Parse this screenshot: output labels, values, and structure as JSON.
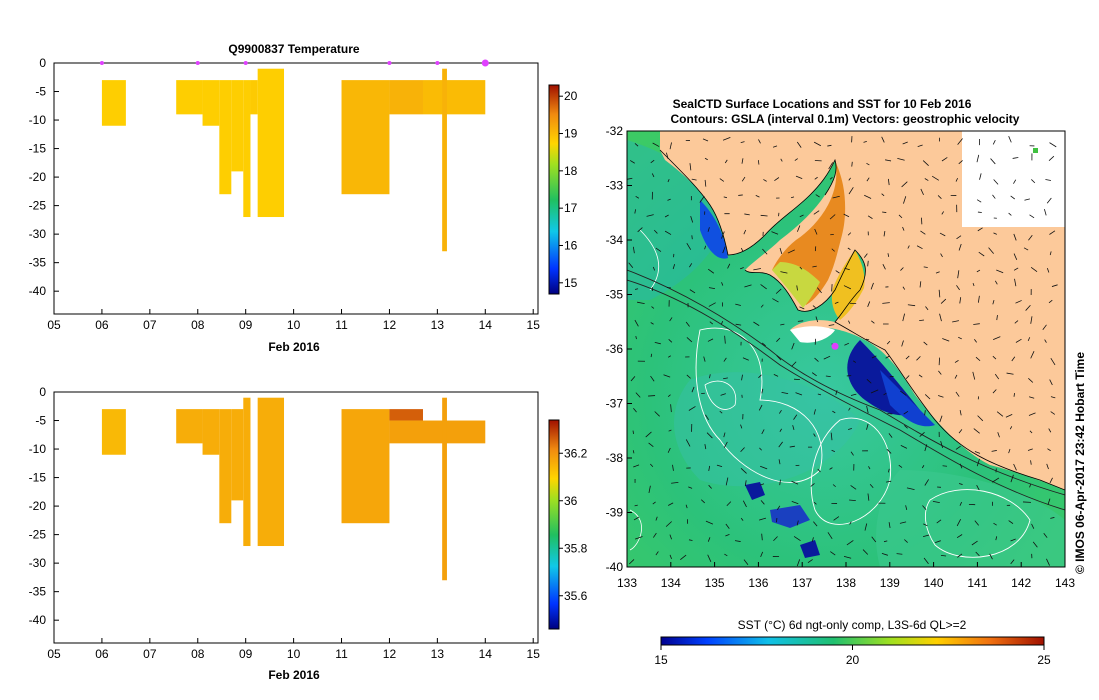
{
  "colors": {
    "temp_bar": "#f7b11c",
    "temp_bar_dark": "#e78a1e",
    "sal_bar": "#f9b318",
    "sal_bar_dark": "#e8751a",
    "land": "#fcc99a",
    "deep_blue": "#0a1a8c",
    "sea_green": "#2ec87a",
    "marker": "#e040ff"
  },
  "chart_data": [
    {
      "type": "heatmap",
      "title": "Q9900837  Temperature",
      "xlabel": "Feb 2016",
      "ylabel": "",
      "xlim": [
        5,
        15.1
      ],
      "ylim": [
        -44,
        0
      ],
      "x_ticks": [
        "05",
        "06",
        "07",
        "08",
        "09",
        "10",
        "11",
        "12",
        "13",
        "14",
        "15"
      ],
      "y_ticks": [
        "0",
        "-5",
        "-10",
        "-15",
        "-20",
        "-25",
        "-30",
        "-35",
        "-40"
      ],
      "colorbar": {
        "min": 14.7,
        "max": 20.3,
        "ticks": [
          "15",
          "16",
          "17",
          "18",
          "19",
          "20"
        ]
      },
      "profile_markers": [
        6.0,
        8.0,
        9.0,
        12.0,
        13.0,
        14.0
      ],
      "profiles": [
        {
          "x0": 6.0,
          "x1": 6.5,
          "z0": -3,
          "z1": -11,
          "value": 18.8
        },
        {
          "x0": 7.55,
          "x1": 8.1,
          "z0": -3,
          "z1": -9,
          "value": 18.8
        },
        {
          "x0": 8.1,
          "x1": 8.45,
          "z0": -3,
          "z1": -11,
          "value": 18.8
        },
        {
          "x0": 8.45,
          "x1": 8.7,
          "z0": -3,
          "z1": -23,
          "value": 18.8
        },
        {
          "x0": 8.7,
          "x1": 8.95,
          "z0": -3,
          "z1": -19,
          "value": 18.8
        },
        {
          "x0": 8.95,
          "x1": 9.1,
          "z0": -3,
          "z1": -27,
          "value": 18.8
        },
        {
          "x0": 9.1,
          "x1": 9.25,
          "z0": -3,
          "z1": -9,
          "value": 18.85
        },
        {
          "x0": 9.25,
          "x1": 9.8,
          "z0": -1,
          "z1": -27,
          "value": 18.8
        },
        {
          "x0": 11.0,
          "x1": 12.0,
          "z0": -3,
          "z1": -23,
          "value": 19.05
        },
        {
          "x0": 12.0,
          "x1": 12.7,
          "z0": -3,
          "z1": -9,
          "value": 19.1
        },
        {
          "x0": 12.7,
          "x1": 14.0,
          "z0": -3,
          "z1": -9,
          "value": 19.0
        },
        {
          "x0": 13.1,
          "x1": 13.2,
          "z0": -1,
          "z1": -33,
          "value": 19.1
        }
      ]
    },
    {
      "type": "heatmap",
      "title": "",
      "xlabel": "Feb 2016",
      "ylabel": "",
      "xlim": [
        5,
        15.1
      ],
      "ylim": [
        -44,
        0
      ],
      "x_ticks": [
        "05",
        "06",
        "07",
        "08",
        "09",
        "10",
        "11",
        "12",
        "13",
        "14",
        "15"
      ],
      "y_ticks": [
        "0",
        "-5",
        "-10",
        "-15",
        "-20",
        "-25",
        "-30",
        "-35",
        "-40"
      ],
      "colorbar": {
        "min": 35.46,
        "max": 36.34,
        "ticks": [
          "35.6",
          "35.8",
          "36",
          "36.2"
        ]
      },
      "profiles": [
        {
          "x0": 6.0,
          "x1": 6.5,
          "z0": -3,
          "z1": -11,
          "value": 36.14
        },
        {
          "x0": 7.55,
          "x1": 8.1,
          "z0": -3,
          "z1": -9,
          "value": 36.16
        },
        {
          "x0": 8.1,
          "x1": 8.45,
          "z0": -3,
          "z1": -11,
          "value": 36.16
        },
        {
          "x0": 8.45,
          "x1": 8.7,
          "z0": -3,
          "z1": -23,
          "value": 36.16
        },
        {
          "x0": 8.7,
          "x1": 8.95,
          "z0": -3,
          "z1": -19,
          "value": 36.16
        },
        {
          "x0": 8.95,
          "x1": 9.1,
          "z0": -1,
          "z1": -27,
          "value": 36.16
        },
        {
          "x0": 9.25,
          "x1": 9.8,
          "z0": -1,
          "z1": -27,
          "value": 36.16
        },
        {
          "x0": 11.0,
          "x1": 12.0,
          "z0": -3,
          "z1": -23,
          "value": 36.17
        },
        {
          "x0": 12.0,
          "x1": 12.7,
          "z0": -3,
          "z1": -5,
          "value": 36.26
        },
        {
          "x0": 12.0,
          "x1": 14.0,
          "z0": -5,
          "z1": -9,
          "value": 36.18
        },
        {
          "x0": 13.1,
          "x1": 13.2,
          "z0": -1,
          "z1": -33,
          "value": 36.18
        }
      ]
    },
    {
      "type": "heatmap",
      "title": "SealCTD Surface Locations and SST for 10 Feb 2016",
      "subtitle": "Contours: GSLA (interval 0.1m) Vectors: geostrophic velocity",
      "xlim": [
        133,
        143
      ],
      "ylim": [
        -40,
        -32
      ],
      "x_ticks": [
        "133",
        "134",
        "135",
        "136",
        "137",
        "138",
        "139",
        "140",
        "141",
        "142",
        "143"
      ],
      "y_ticks": [
        "-32",
        "-33",
        "-34",
        "-35",
        "-36",
        "-37",
        "-38",
        "-39",
        "-40"
      ],
      "colorbar": {
        "label": "SST (°C) 6d ngt-only comp, L3S-6d QL>=2",
        "min": 15,
        "max": 25,
        "ticks": [
          "15",
          "20",
          "25"
        ]
      },
      "credit": "© IMOS 06-Apr-2017 23:42 Hobart Time",
      "surface_locations": [
        {
          "lon": 137.75,
          "lat": -35.95
        }
      ]
    }
  ]
}
